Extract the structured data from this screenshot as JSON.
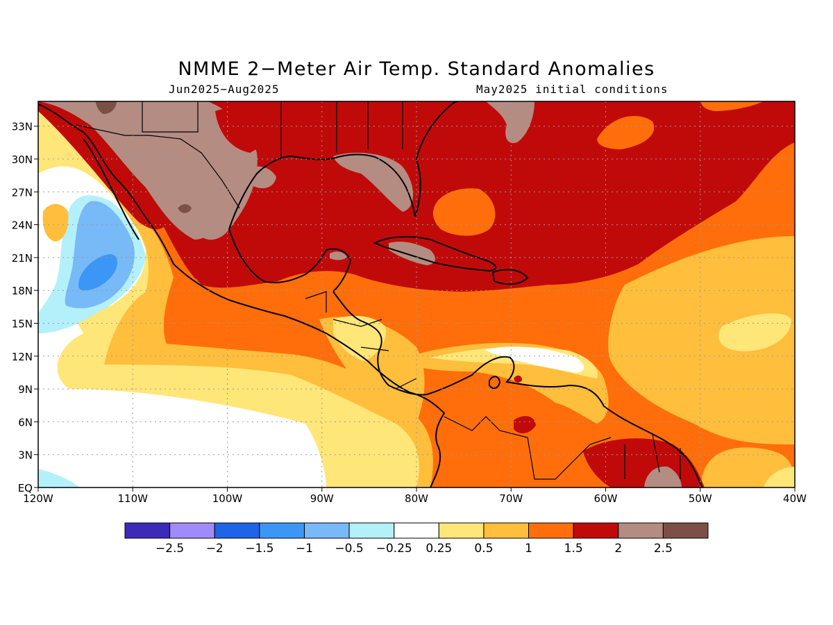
{
  "title": "NMME 2−Meter Air Temp. Standard Anomalies",
  "subtitle_left": "Jun2025−Aug2025",
  "subtitle_right": "May2025 initial conditions",
  "lat_labels": [
    "33N",
    "30N",
    "27N",
    "24N",
    "21N",
    "18N",
    "15N",
    "12N",
    "9N",
    "6N",
    "3N",
    "EQ"
  ],
  "lon_labels": [
    "120W",
    "110W",
    "100W",
    "90W",
    "80W",
    "70W",
    "60W",
    "50W",
    "40W"
  ],
  "colorbar": {
    "colors": [
      "#3c2bb8",
      "#a08cf8",
      "#1f64e6",
      "#3c96f5",
      "#78b9f8",
      "#b4f0fa",
      "#ffffff",
      "#ffe678",
      "#ffbe3c",
      "#ff6e0a",
      "#c00a0a",
      "#b48c82",
      "#7d5046"
    ],
    "labels": [
      "−2.5",
      "−2",
      "−1.5",
      "−1",
      "−0.5",
      "−0.25",
      "0.25",
      "0.5",
      "1",
      "1.5",
      "2",
      "2.5"
    ]
  },
  "region_colors": {
    "white": "#ffffff",
    "lightblue": "#b4f0fa",
    "blue_05": "#78b9f8",
    "blue_1": "#3c96f5",
    "yellow": "#ffe678",
    "lightorange": "#ffbe3c",
    "orange": "#ff6e0a",
    "red": "#c00a0a",
    "brown": "#b48c82",
    "darkbrown": "#7d5046"
  }
}
